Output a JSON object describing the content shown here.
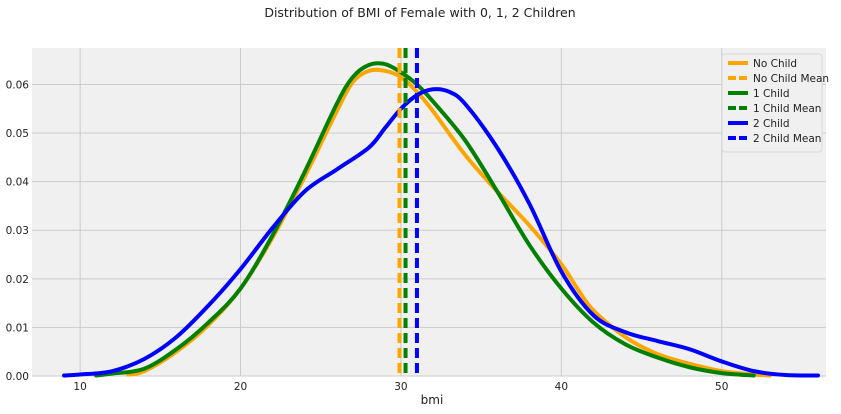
{
  "chart_data": {
    "type": "line",
    "title": "Distribution of BMI of Female with 0, 1, 2 Children",
    "xlabel": "bmi",
    "ylabel": "",
    "xlim": [
      7,
      56.5
    ],
    "ylim": [
      0,
      0.0675
    ],
    "xticks": [
      10,
      20,
      30,
      40,
      50
    ],
    "yticks": [
      0.0,
      0.01,
      0.02,
      0.03,
      0.04,
      0.05,
      0.06
    ],
    "ytick_labels": [
      "0.00",
      "0.01",
      "0.02",
      "0.03",
      "0.04",
      "0.05",
      "0.06"
    ],
    "grid": true,
    "legend_position": "top-right",
    "series": [
      {
        "name": "No Child",
        "color": "#ffa500",
        "style": "solid",
        "x": [
          13,
          14,
          16,
          18,
          20,
          22,
          24,
          26,
          27,
          28,
          29,
          30,
          31,
          32,
          34,
          36,
          38,
          40,
          41,
          42,
          44,
          46,
          48,
          50,
          52,
          53
        ],
        "y": [
          0.0003,
          0.001,
          0.005,
          0.0105,
          0.018,
          0.0285,
          0.041,
          0.0545,
          0.0605,
          0.0628,
          0.0628,
          0.0615,
          0.0585,
          0.0545,
          0.0455,
          0.038,
          0.031,
          0.023,
          0.018,
          0.0135,
          0.008,
          0.0045,
          0.0025,
          0.001,
          0.0003,
          0.0001
        ]
      },
      {
        "name": "1 Child",
        "color": "#008000",
        "style": "solid",
        "x": [
          11,
          12,
          14,
          16,
          18,
          20,
          22,
          24,
          26,
          27,
          28,
          29,
          30,
          31,
          32,
          34,
          36,
          38,
          40,
          42,
          44,
          46,
          48,
          50,
          52
        ],
        "y": [
          0.0001,
          0.0005,
          0.0015,
          0.0055,
          0.011,
          0.018,
          0.029,
          0.042,
          0.056,
          0.0615,
          0.064,
          0.0642,
          0.0625,
          0.06,
          0.0565,
          0.0485,
          0.038,
          0.027,
          0.018,
          0.011,
          0.0065,
          0.0038,
          0.0018,
          0.0006,
          0.0001
        ]
      },
      {
        "name": "2 Child",
        "color": "#0000ff",
        "style": "solid",
        "x": [
          9,
          10,
          12,
          14,
          16,
          18,
          20,
          22,
          24,
          26,
          28,
          29,
          30,
          31,
          32,
          33,
          34,
          36,
          38,
          40,
          42,
          44,
          46,
          48,
          50,
          52,
          54,
          56
        ],
        "y": [
          0.0001,
          0.0003,
          0.001,
          0.0035,
          0.008,
          0.0145,
          0.022,
          0.0305,
          0.038,
          0.0425,
          0.047,
          0.051,
          0.055,
          0.0578,
          0.059,
          0.0585,
          0.056,
          0.047,
          0.0355,
          0.0215,
          0.0125,
          0.009,
          0.0072,
          0.0055,
          0.003,
          0.001,
          0.0002,
          0.0001
        ]
      }
    ],
    "mean_lines": [
      {
        "name": "No Child Mean",
        "color": "#ffa500",
        "x": 30.1
      },
      {
        "name": "1 Child Mean",
        "color": "#008000",
        "x": 30.1
      },
      {
        "name": "2 Child Mean",
        "color": "#0000ff",
        "x": 30.5
      }
    ],
    "legend": [
      {
        "label": "No Child",
        "color": "#ffa500",
        "style": "solid"
      },
      {
        "label": "No Child Mean",
        "color": "#ffa500",
        "style": "dashed"
      },
      {
        "label": "1 Child",
        "color": "#008000",
        "style": "solid"
      },
      {
        "label": "1 Child Mean",
        "color": "#008000",
        "style": "dashed"
      },
      {
        "label": "2 Child",
        "color": "#0000ff",
        "style": "solid"
      },
      {
        "label": "2 Child Mean",
        "color": "#0000ff",
        "style": "dashed"
      }
    ]
  }
}
